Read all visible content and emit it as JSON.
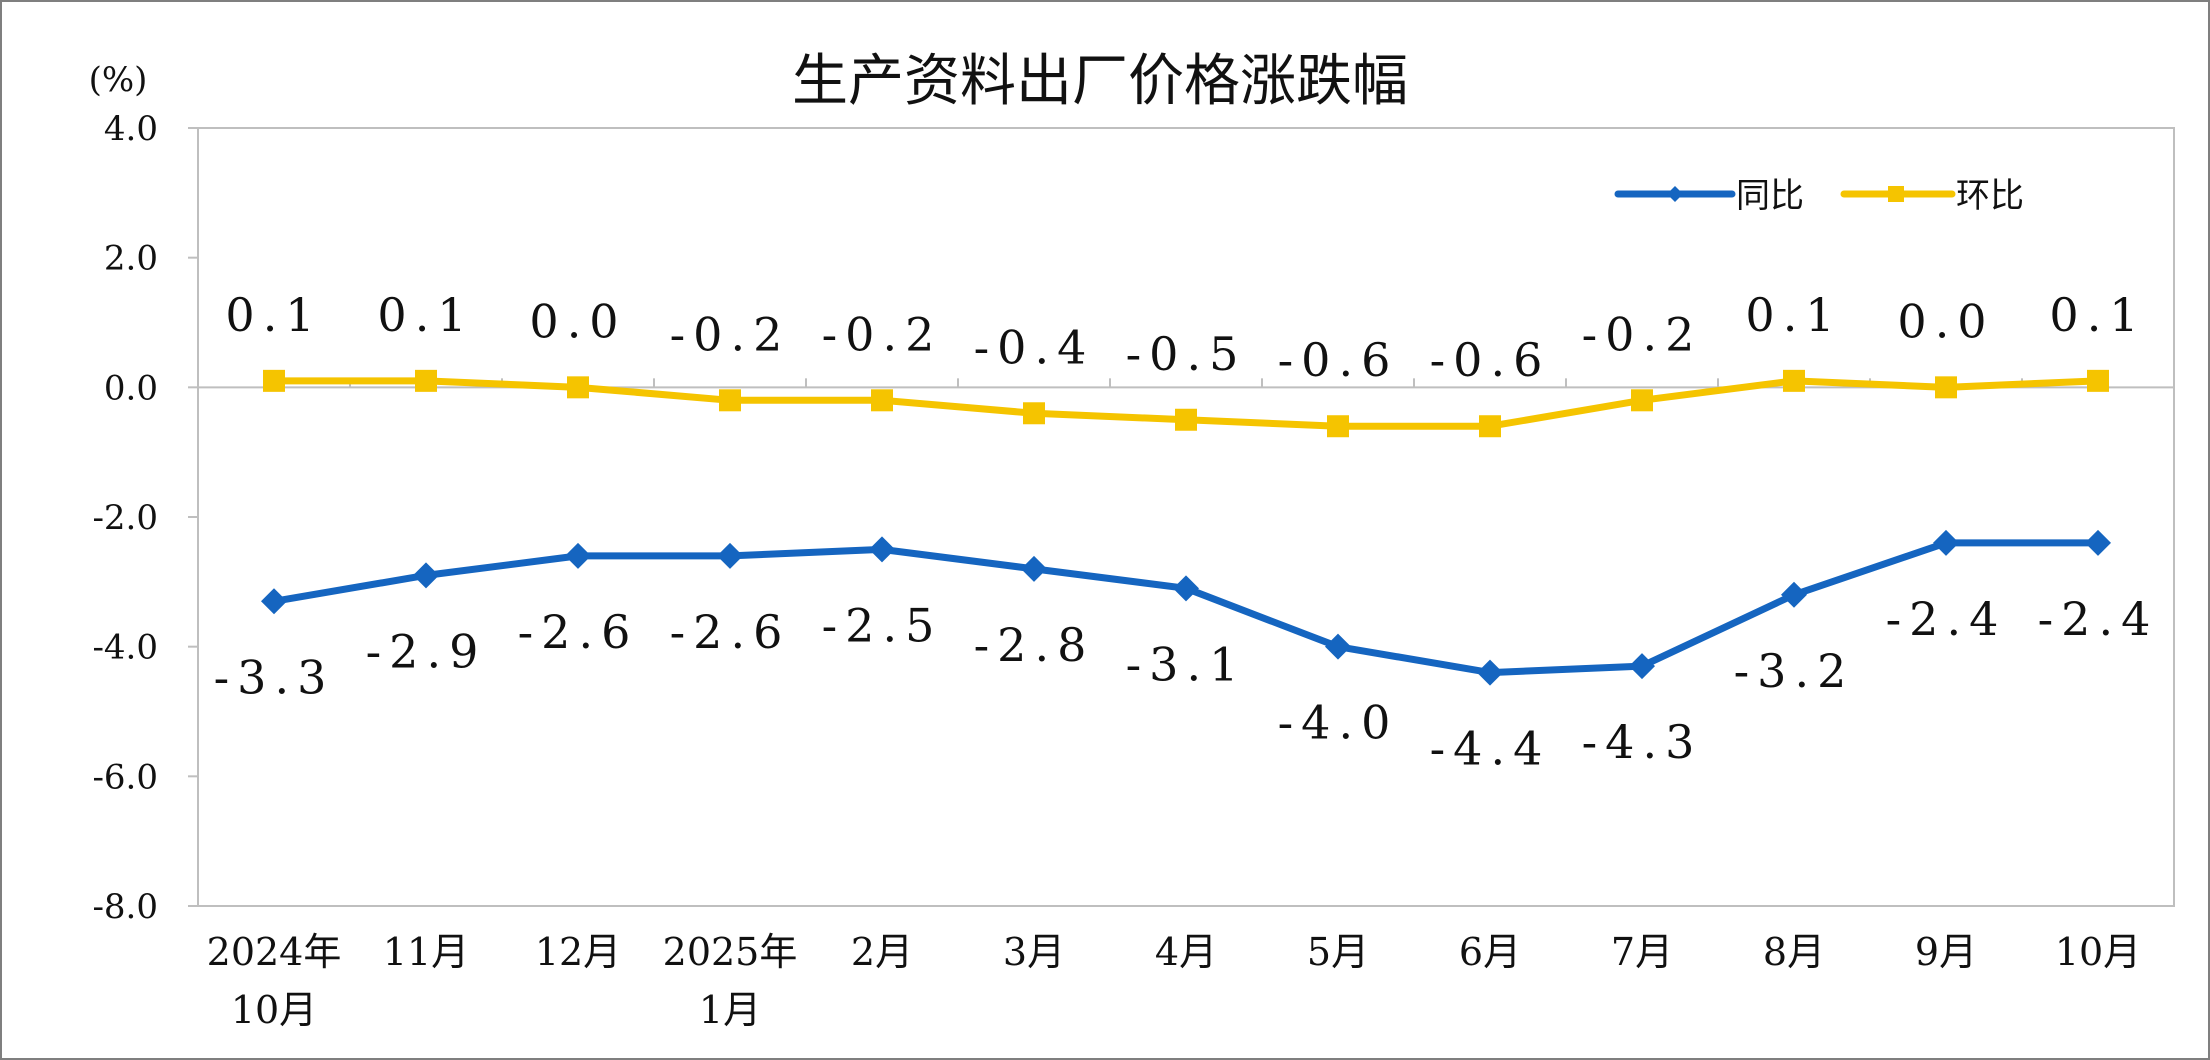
{
  "chart_data": {
    "type": "line",
    "title": "生产资料出厂价格涨跌幅",
    "ylabel": "(%)",
    "ylim": [
      -8.0,
      4.0
    ],
    "yticks": [
      "4.0",
      "2.0",
      "0.0",
      "-2.0",
      "-4.0",
      "-6.0",
      "-8.0"
    ],
    "ytick_values": [
      4,
      2,
      0,
      -2,
      -4,
      -6,
      -8
    ],
    "categories": [
      [
        "2024年",
        "10月"
      ],
      [
        "11月"
      ],
      [
        "12月"
      ],
      [
        "2025年",
        "1月"
      ],
      [
        "2月"
      ],
      [
        "3月"
      ],
      [
        "4月"
      ],
      [
        "5月"
      ],
      [
        "6月"
      ],
      [
        "7月"
      ],
      [
        "8月"
      ],
      [
        "9月"
      ],
      [
        "10月"
      ]
    ],
    "legend_position": "top-right",
    "series": [
      {
        "name": "同比",
        "color": "#1565c0",
        "marker": "diamond",
        "values": [
          -3.3,
          -2.9,
          -2.6,
          -2.6,
          -2.5,
          -2.8,
          -3.1,
          -4.0,
          -4.4,
          -4.3,
          -3.2,
          -2.4,
          -2.4
        ],
        "labels": [
          "-3.3",
          "-2.9",
          "-2.6",
          "-2.6",
          "-2.5",
          "-2.8",
          "-3.1",
          "-4.0",
          "-4.4",
          "-4.3",
          "-3.2",
          "-2.4",
          "-2.4"
        ]
      },
      {
        "name": "环比",
        "color": "#f5c400",
        "marker": "square",
        "values": [
          0.1,
          0.1,
          0.0,
          -0.2,
          -0.2,
          -0.4,
          -0.5,
          -0.6,
          -0.6,
          -0.2,
          0.1,
          0.0,
          0.1
        ],
        "labels": [
          "0.1",
          "0.1",
          "0.0",
          "-0.2",
          "-0.2",
          "-0.4",
          "-0.5",
          "-0.6",
          "-0.6",
          "-0.2",
          "0.1",
          "0.0",
          "0.1"
        ]
      }
    ]
  }
}
